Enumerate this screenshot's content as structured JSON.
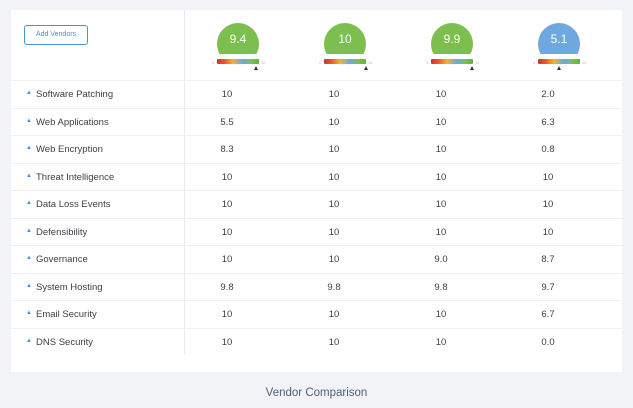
{
  "toolbar": {
    "add_vendors_label": "Add Vendors"
  },
  "colors": {
    "accent": "#4a90d9",
    "green_score": "#7cbf4e",
    "blue_score": "#6fa8dc"
  },
  "vendors": [
    {
      "score": "9.4",
      "score_color": "#7cbf4e",
      "scale_min": "0",
      "scale_max": "10",
      "marker_fraction": 0.94
    },
    {
      "score": "10",
      "score_color": "#7cbf4e",
      "scale_min": "0",
      "scale_max": "10",
      "marker_fraction": 1.0
    },
    {
      "score": "9.9",
      "score_color": "#7cbf4e",
      "scale_min": "0",
      "scale_max": "10",
      "marker_fraction": 0.99
    },
    {
      "score": "5.1",
      "score_color": "#6fa8dc",
      "scale_min": "0",
      "scale_max": "10",
      "marker_fraction": 0.51
    }
  ],
  "categories": [
    {
      "label": "Software Patching",
      "values": [
        "10",
        "10",
        "10",
        "2.0"
      ]
    },
    {
      "label": "Web Applications",
      "values": [
        "5.5",
        "10",
        "10",
        "6.3"
      ]
    },
    {
      "label": "Web Encryption",
      "values": [
        "8.3",
        "10",
        "10",
        "0.8"
      ]
    },
    {
      "label": "Threat Intelligence",
      "values": [
        "10",
        "10",
        "10",
        "10"
      ]
    },
    {
      "label": "Data Loss Events",
      "values": [
        "10",
        "10",
        "10",
        "10"
      ]
    },
    {
      "label": "Defensibility",
      "values": [
        "10",
        "10",
        "10",
        "10"
      ]
    },
    {
      "label": "Governance",
      "values": [
        "10",
        "10",
        "9.0",
        "8.7"
      ]
    },
    {
      "label": "System Hosting",
      "values": [
        "9.8",
        "9.8",
        "9.8",
        "9.7"
      ]
    },
    {
      "label": "Email Security",
      "values": [
        "10",
        "10",
        "10",
        "6.7"
      ]
    },
    {
      "label": "DNS Security",
      "values": [
        "10",
        "10",
        "10",
        "0.0"
      ]
    }
  ],
  "footer": {
    "title": "Vendor Comparison"
  }
}
